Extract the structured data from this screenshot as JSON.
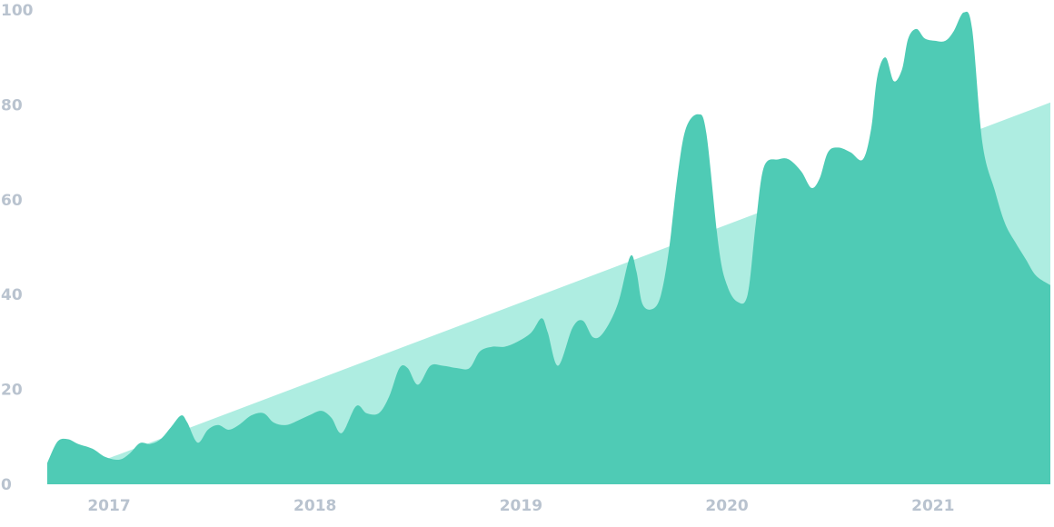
{
  "chart_data": {
    "type": "area",
    "title": "",
    "xlabel": "",
    "ylabel": "",
    "ylim": [
      0,
      100
    ],
    "xlim": [
      2016.7,
      2021.57
    ],
    "grid": false,
    "y_ticks": [
      {
        "value": 0,
        "label": "0"
      },
      {
        "value": 20,
        "label": "20"
      },
      {
        "value": 40,
        "label": "40"
      },
      {
        "value": 60,
        "label": "60"
      },
      {
        "value": 80,
        "label": "80"
      },
      {
        "value": 100,
        "label": "100"
      }
    ],
    "x_ticks": [
      {
        "value": 2017,
        "label": "2017"
      },
      {
        "value": 2018,
        "label": "2018"
      },
      {
        "value": 2019,
        "label": "2019"
      },
      {
        "value": 2020,
        "label": "2020"
      },
      {
        "value": 2021,
        "label": "2021"
      }
    ],
    "colors": {
      "series": "#4fcbb5",
      "trend": "#aeede1",
      "tick": "#b9c3cf"
    },
    "series": [
      {
        "values": [
          [
            2016.7,
            4.5
          ],
          [
            2016.75,
            9
          ],
          [
            2016.8,
            9.5
          ],
          [
            2016.85,
            8.5
          ],
          [
            2016.92,
            7.5
          ],
          [
            2016.98,
            5.8
          ],
          [
            2017.05,
            5.2
          ],
          [
            2017.1,
            6.5
          ],
          [
            2017.15,
            8.7
          ],
          [
            2017.2,
            8.5
          ],
          [
            2017.25,
            9.5
          ],
          [
            2017.3,
            12
          ],
          [
            2017.35,
            14.5
          ],
          [
            2017.38,
            13
          ],
          [
            2017.43,
            8.8
          ],
          [
            2017.48,
            11.5
          ],
          [
            2017.53,
            12.5
          ],
          [
            2017.58,
            11.5
          ],
          [
            2017.63,
            12.5
          ],
          [
            2017.69,
            14.5
          ],
          [
            2017.75,
            15
          ],
          [
            2017.8,
            13
          ],
          [
            2017.86,
            12.5
          ],
          [
            2017.92,
            13.5
          ],
          [
            2017.97,
            14.5
          ],
          [
            2018.03,
            15.5
          ],
          [
            2018.08,
            14
          ],
          [
            2018.13,
            10.8
          ],
          [
            2018.2,
            16.5
          ],
          [
            2018.25,
            15
          ],
          [
            2018.31,
            15
          ],
          [
            2018.36,
            18.5
          ],
          [
            2018.41,
            24.5
          ],
          [
            2018.45,
            24.5
          ],
          [
            2018.5,
            21
          ],
          [
            2018.56,
            25
          ],
          [
            2018.62,
            25
          ],
          [
            2018.69,
            24.5
          ],
          [
            2018.75,
            24.5
          ],
          [
            2018.8,
            28
          ],
          [
            2018.86,
            29
          ],
          [
            2018.92,
            29
          ],
          [
            2018.98,
            30
          ],
          [
            2019.05,
            32
          ],
          [
            2019.1,
            35
          ],
          [
            2019.13,
            32
          ],
          [
            2019.18,
            25
          ],
          [
            2019.25,
            33
          ],
          [
            2019.3,
            34.5
          ],
          [
            2019.35,
            31
          ],
          [
            2019.4,
            32
          ],
          [
            2019.47,
            38
          ],
          [
            2019.53,
            48
          ],
          [
            2019.56,
            45
          ],
          [
            2019.59,
            38
          ],
          [
            2019.64,
            37
          ],
          [
            2019.68,
            40
          ],
          [
            2019.72,
            50
          ],
          [
            2019.76,
            65
          ],
          [
            2019.8,
            75
          ],
          [
            2019.86,
            78
          ],
          [
            2019.9,
            74
          ],
          [
            2019.96,
            50
          ],
          [
            2020.0,
            42
          ],
          [
            2020.05,
            38.5
          ],
          [
            2020.1,
            40
          ],
          [
            2020.14,
            55
          ],
          [
            2020.18,
            67
          ],
          [
            2020.25,
            68.5
          ],
          [
            2020.3,
            68.5
          ],
          [
            2020.36,
            66
          ],
          [
            2020.41,
            62.5
          ],
          [
            2020.45,
            64.5
          ],
          [
            2020.49,
            70
          ],
          [
            2020.54,
            71
          ],
          [
            2020.6,
            70
          ],
          [
            2020.66,
            68.5
          ],
          [
            2020.7,
            75
          ],
          [
            2020.73,
            86
          ],
          [
            2020.77,
            90
          ],
          [
            2020.81,
            85
          ],
          [
            2020.85,
            87.5
          ],
          [
            2020.88,
            94
          ],
          [
            2020.92,
            96
          ],
          [
            2020.96,
            94
          ],
          [
            2021.01,
            93.5
          ],
          [
            2021.06,
            93.5
          ],
          [
            2021.1,
            95.5
          ],
          [
            2021.15,
            99.5
          ],
          [
            2021.19,
            96
          ],
          [
            2021.24,
            72
          ],
          [
            2021.3,
            62
          ],
          [
            2021.35,
            55
          ],
          [
            2021.4,
            51
          ],
          [
            2021.45,
            47.5
          ],
          [
            2021.5,
            44
          ],
          [
            2021.57,
            42
          ]
        ]
      },
      {
        "values": [
          [
            2016.7,
            0.6
          ],
          [
            2021.57,
            80.5
          ]
        ]
      }
    ]
  }
}
